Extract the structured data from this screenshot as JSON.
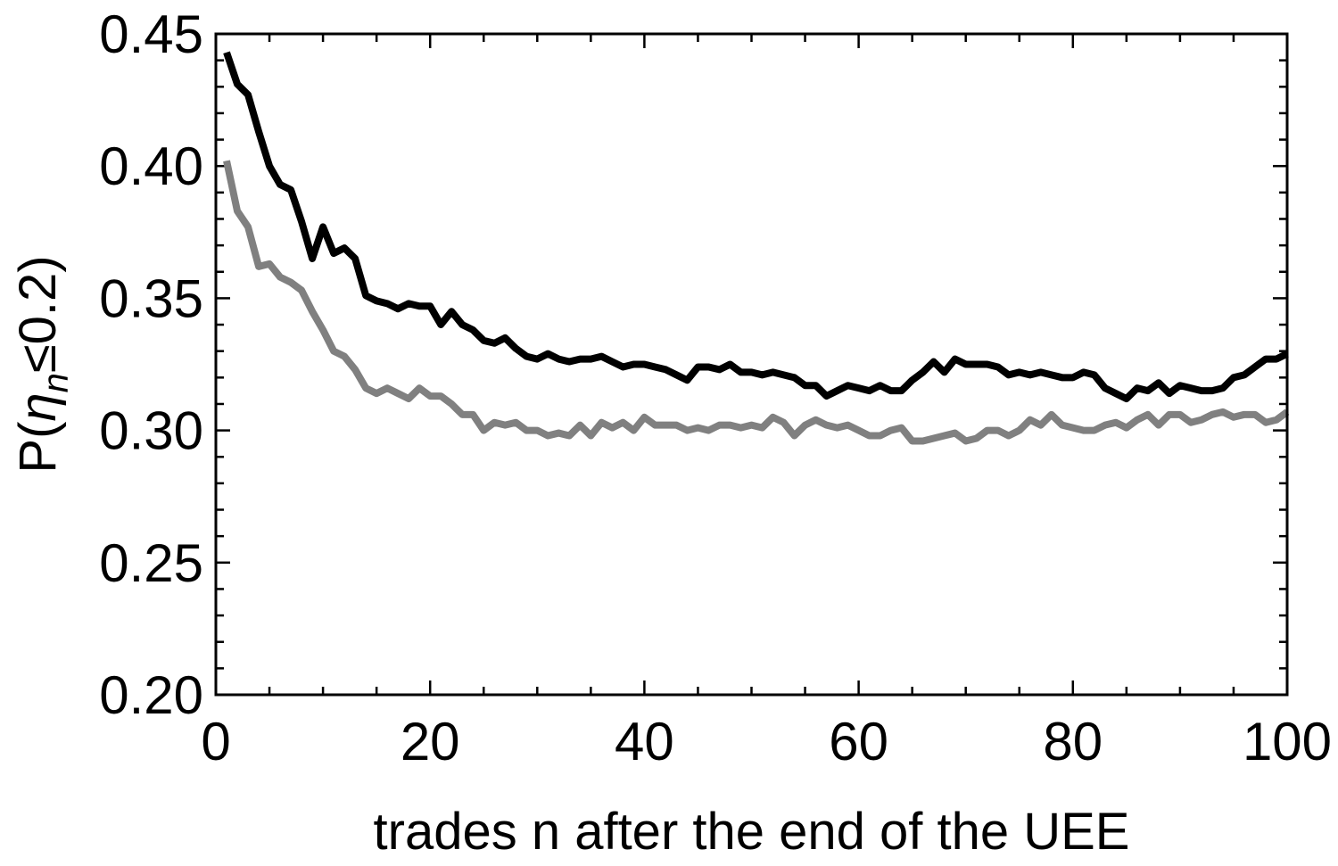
{
  "chart_data": {
    "type": "line",
    "title": "",
    "xlabel": "trades n after the end of the UEE",
    "ylabel": "P(η_n≤0.2)",
    "ylabel_parts": {
      "lead": "P(",
      "eta": "η",
      "sub": "n",
      "tail": "≤0.2)"
    },
    "xlim": [
      0,
      100
    ],
    "ylim": [
      0.2,
      0.45
    ],
    "x_ticks": [
      0,
      20,
      40,
      60,
      80,
      100
    ],
    "x_tick_labels": [
      "0",
      "20",
      "40",
      "60",
      "80",
      "100"
    ],
    "y_ticks": [
      0.2,
      0.25,
      0.3,
      0.35,
      0.4,
      0.45
    ],
    "y_tick_labels": [
      "0.20",
      "0.25",
      "0.30",
      "0.35",
      "0.40",
      "0.45"
    ],
    "grid": false,
    "legend": "none",
    "series": [
      {
        "color": "#000000",
        "x": [
          1,
          2,
          3,
          4,
          5,
          6,
          7,
          8,
          9,
          10,
          11,
          12,
          13,
          14,
          15,
          16,
          17,
          18,
          19,
          20,
          21,
          22,
          23,
          24,
          25,
          26,
          27,
          28,
          29,
          30,
          31,
          32,
          33,
          34,
          35,
          36,
          37,
          38,
          39,
          40,
          41,
          42,
          43,
          44,
          45,
          46,
          47,
          48,
          49,
          50,
          51,
          52,
          53,
          54,
          55,
          56,
          57,
          58,
          59,
          60,
          61,
          62,
          63,
          64,
          65,
          66,
          67,
          68,
          69,
          70,
          71,
          72,
          73,
          74,
          75,
          76,
          77,
          78,
          79,
          80,
          81,
          82,
          83,
          84,
          85,
          86,
          87,
          88,
          89,
          90,
          91,
          92,
          93,
          94,
          95,
          96,
          97,
          98,
          99,
          100
        ],
        "y": [
          0.443,
          0.431,
          0.427,
          0.413,
          0.4,
          0.393,
          0.391,
          0.379,
          0.365,
          0.377,
          0.367,
          0.369,
          0.365,
          0.351,
          0.349,
          0.348,
          0.346,
          0.348,
          0.347,
          0.347,
          0.34,
          0.345,
          0.34,
          0.338,
          0.334,
          0.333,
          0.335,
          0.331,
          0.328,
          0.327,
          0.329,
          0.327,
          0.326,
          0.327,
          0.327,
          0.328,
          0.326,
          0.324,
          0.325,
          0.325,
          0.324,
          0.323,
          0.321,
          0.319,
          0.324,
          0.324,
          0.323,
          0.325,
          0.322,
          0.322,
          0.321,
          0.322,
          0.321,
          0.32,
          0.317,
          0.317,
          0.313,
          0.315,
          0.317,
          0.316,
          0.315,
          0.317,
          0.315,
          0.315,
          0.319,
          0.322,
          0.326,
          0.322,
          0.327,
          0.325,
          0.325,
          0.325,
          0.324,
          0.321,
          0.322,
          0.321,
          0.322,
          0.321,
          0.32,
          0.32,
          0.322,
          0.321,
          0.316,
          0.314,
          0.312,
          0.316,
          0.315,
          0.318,
          0.314,
          0.317,
          0.316,
          0.315,
          0.315,
          0.316,
          0.32,
          0.321,
          0.324,
          0.327,
          0.327,
          0.329
        ]
      },
      {
        "color": "#808080",
        "x": [
          1,
          2,
          3,
          4,
          5,
          6,
          7,
          8,
          9,
          10,
          11,
          12,
          13,
          14,
          15,
          16,
          17,
          18,
          19,
          20,
          21,
          22,
          23,
          24,
          25,
          26,
          27,
          28,
          29,
          30,
          31,
          32,
          33,
          34,
          35,
          36,
          37,
          38,
          39,
          40,
          41,
          42,
          43,
          44,
          45,
          46,
          47,
          48,
          49,
          50,
          51,
          52,
          53,
          54,
          55,
          56,
          57,
          58,
          59,
          60,
          61,
          62,
          63,
          64,
          65,
          66,
          67,
          68,
          69,
          70,
          71,
          72,
          73,
          74,
          75,
          76,
          77,
          78,
          79,
          80,
          81,
          82,
          83,
          84,
          85,
          86,
          87,
          88,
          89,
          90,
          91,
          92,
          93,
          94,
          95,
          96,
          97,
          98,
          99,
          100
        ],
        "y": [
          0.402,
          0.383,
          0.377,
          0.362,
          0.363,
          0.358,
          0.356,
          0.353,
          0.345,
          0.338,
          0.33,
          0.328,
          0.323,
          0.316,
          0.314,
          0.316,
          0.314,
          0.312,
          0.316,
          0.313,
          0.313,
          0.31,
          0.306,
          0.306,
          0.3,
          0.303,
          0.302,
          0.303,
          0.3,
          0.3,
          0.298,
          0.299,
          0.298,
          0.302,
          0.298,
          0.303,
          0.301,
          0.303,
          0.3,
          0.305,
          0.302,
          0.302,
          0.302,
          0.3,
          0.301,
          0.3,
          0.302,
          0.302,
          0.301,
          0.302,
          0.301,
          0.305,
          0.303,
          0.298,
          0.302,
          0.304,
          0.302,
          0.301,
          0.302,
          0.3,
          0.298,
          0.298,
          0.3,
          0.301,
          0.296,
          0.296,
          0.297,
          0.298,
          0.299,
          0.296,
          0.297,
          0.3,
          0.3,
          0.298,
          0.3,
          0.304,
          0.302,
          0.306,
          0.302,
          0.301,
          0.3,
          0.3,
          0.302,
          0.303,
          0.301,
          0.304,
          0.306,
          0.302,
          0.306,
          0.306,
          0.303,
          0.304,
          0.306,
          0.307,
          0.305,
          0.306,
          0.306,
          0.303,
          0.304,
          0.307
        ]
      }
    ]
  }
}
